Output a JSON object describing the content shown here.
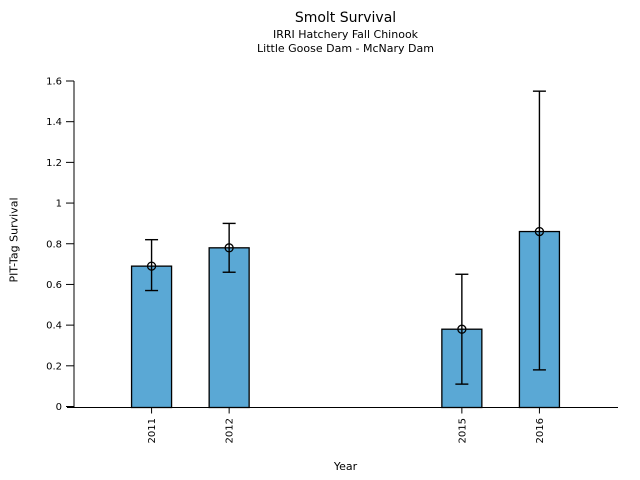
{
  "header": {
    "title": "Smolt Survival",
    "subtitle_line1": "IRRI Hatchery Fall Chinook",
    "subtitle_line2": "Little Goose Dam - McNary Dam"
  },
  "axes": {
    "xlabel": "Year",
    "ylabel": "PIT-Tag Survival"
  },
  "chart_data": {
    "type": "bar",
    "title": "Smolt Survival",
    "subtitle": [
      "IRRI Hatchery Fall Chinook",
      "Little Goose Dam - McNary Dam"
    ],
    "xlabel": "Year",
    "ylabel": "PIT-Tag Survival",
    "categories": [
      "2011",
      "2012",
      "2015",
      "2016"
    ],
    "x": [
      2011,
      2012,
      2015,
      2016
    ],
    "values": [
      0.69,
      0.78,
      0.38,
      0.86
    ],
    "error_low": [
      0.57,
      0.66,
      0.11,
      0.18
    ],
    "error_high": [
      0.82,
      0.9,
      0.65,
      1.55
    ],
    "point_marker": "open-circle",
    "ylim": [
      0,
      1.6
    ],
    "yticks": [
      0,
      0.2,
      0.4,
      0.6,
      0.8,
      1,
      1.2,
      1.4,
      1.6
    ],
    "ytick_labels": [
      "0",
      "0.2",
      "0.4",
      "0.6",
      "0.8",
      "1",
      "1.2",
      "1.4",
      "1.6"
    ],
    "xlim": [
      2010,
      2017
    ],
    "xtick_label_rotation": -90,
    "grid": false,
    "legend": null,
    "bar_fill": "#5aa8d5",
    "bar_edge": "#000000",
    "error_color": "#000000",
    "axis_color": "#000000",
    "text_color": "#000000",
    "background": "#ffffff"
  }
}
